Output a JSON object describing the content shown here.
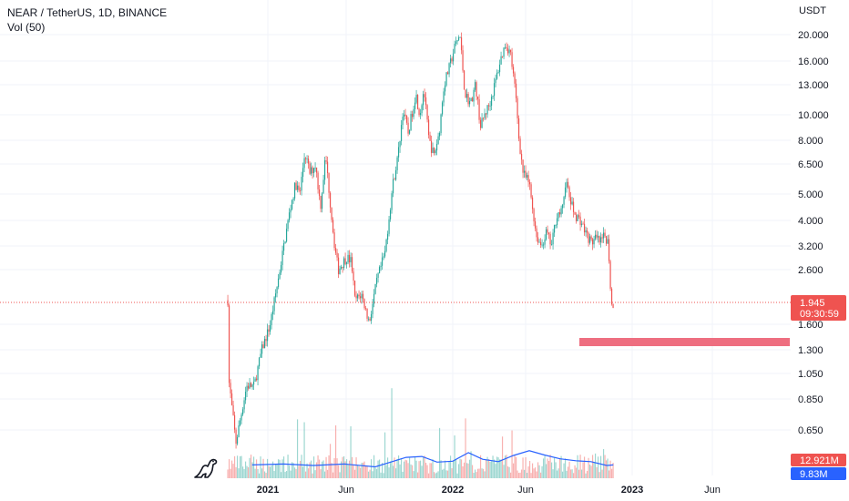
{
  "legend": {
    "symbol_line": "NEAR / TetherUS, 1D, BINANCE",
    "volume_line": "Vol (50)"
  },
  "axis": {
    "currency": "USDT"
  },
  "price_ticks": [
    "20.000",
    "16.000",
    "13.000",
    "10.000",
    "8.000",
    "6.500",
    "5.000",
    "4.000",
    "3.200",
    "2.600",
    "1.600",
    "1.300",
    "1.050",
    "0.850",
    "0.650"
  ],
  "time_ticks": [
    "2021",
    "Jun",
    "2022",
    "Jun",
    "2023",
    "Jun"
  ],
  "last_price": {
    "value": "1.945",
    "countdown": "09:30:59"
  },
  "volume_labels": {
    "volume": "12.921M",
    "volume_ma": "9.83M"
  },
  "colors": {
    "up": "#26a69a",
    "down": "#ef5350",
    "ma": "#2962ff",
    "zone": "#ee6e80",
    "grid": "#f0f3fa"
  },
  "chart_data": {
    "type": "candlestick",
    "title": "NEAR / TetherUS, 1D, BINANCE",
    "y_scale": "log",
    "ylim": [
      0.55,
      22
    ],
    "last_price": 1.945,
    "support_zone": {
      "from": "2022-09-20",
      "to": "2023-08-31",
      "low": 1.4,
      "high": 1.48
    },
    "price_path": [
      [
        "2020-10-14",
        2.0
      ],
      [
        "2020-10-16",
        1.0
      ],
      [
        "2020-10-30",
        0.58
      ],
      [
        "2020-11-20",
        0.95
      ],
      [
        "2020-12-05",
        0.95
      ],
      [
        "2020-12-20",
        1.3
      ],
      [
        "2021-01-05",
        1.6
      ],
      [
        "2021-01-20",
        2.3
      ],
      [
        "2021-02-05",
        3.5
      ],
      [
        "2021-02-15",
        4.5
      ],
      [
        "2021-02-25",
        5.5
      ],
      [
        "2021-03-05",
        5.0
      ],
      [
        "2021-03-15",
        7.2
      ],
      [
        "2021-03-25",
        6.0
      ],
      [
        "2021-04-05",
        6.5
      ],
      [
        "2021-04-15",
        4.5
      ],
      [
        "2021-04-25",
        7.0
      ],
      [
        "2021-05-05",
        4.5
      ],
      [
        "2021-05-12",
        3.3
      ],
      [
        "2021-05-20",
        2.6
      ],
      [
        "2021-06-05",
        2.9
      ],
      [
        "2021-06-15",
        2.8
      ],
      [
        "2021-06-22",
        2.0
      ],
      [
        "2021-07-05",
        2.1
      ],
      [
        "2021-07-20",
        1.65
      ],
      [
        "2021-08-05",
        2.4
      ],
      [
        "2021-08-20",
        3.0
      ],
      [
        "2021-09-05",
        5.5
      ],
      [
        "2021-09-15",
        7.0
      ],
      [
        "2021-09-25",
        10.5
      ],
      [
        "2021-10-05",
        8.5
      ],
      [
        "2021-10-20",
        12.0
      ],
      [
        "2021-10-28",
        10.0
      ],
      [
        "2021-11-05",
        12.5
      ],
      [
        "2021-11-15",
        8.0
      ],
      [
        "2021-11-25",
        7.0
      ],
      [
        "2021-12-05",
        8.5
      ],
      [
        "2021-12-15",
        13.0
      ],
      [
        "2021-12-25",
        15.0
      ],
      [
        "2022-01-05",
        18.0
      ],
      [
        "2022-01-15",
        20.0
      ],
      [
        "2022-01-25",
        12.0
      ],
      [
        "2022-02-05",
        11.0
      ],
      [
        "2022-02-15",
        13.0
      ],
      [
        "2022-02-25",
        9.0
      ],
      [
        "2022-03-05",
        10.0
      ],
      [
        "2022-03-15",
        11.0
      ],
      [
        "2022-03-25",
        13.0
      ],
      [
        "2022-04-05",
        16.0
      ],
      [
        "2022-04-15",
        18.5
      ],
      [
        "2022-04-25",
        17.0
      ],
      [
        "2022-05-05",
        12.0
      ],
      [
        "2022-05-12",
        8.0
      ],
      [
        "2022-05-20",
        6.0
      ],
      [
        "2022-06-01",
        5.5
      ],
      [
        "2022-06-15",
        3.5
      ],
      [
        "2022-06-25",
        3.2
      ],
      [
        "2022-07-05",
        3.6
      ],
      [
        "2022-07-15",
        3.2
      ],
      [
        "2022-07-25",
        4.2
      ],
      [
        "2022-08-05",
        4.3
      ],
      [
        "2022-08-12",
        5.7
      ],
      [
        "2022-08-20",
        4.8
      ],
      [
        "2022-08-30",
        4.2
      ],
      [
        "2022-09-10",
        4.0
      ],
      [
        "2022-09-20",
        3.6
      ],
      [
        "2022-10-01",
        3.3
      ],
      [
        "2022-10-10",
        3.4
      ],
      [
        "2022-10-20",
        3.3
      ],
      [
        "2022-10-28",
        3.5
      ],
      [
        "2022-11-04",
        3.3
      ],
      [
        "2022-11-08",
        2.3
      ],
      [
        "2022-11-10",
        1.9
      ],
      [
        "2022-11-14",
        1.945
      ]
    ],
    "volume_ma_path": [
      [
        "2020-12-01",
        2.8
      ],
      [
        "2021-02-01",
        3.0
      ],
      [
        "2021-04-01",
        2.7
      ],
      [
        "2021-06-01",
        3.0
      ],
      [
        "2021-08-01",
        2.4
      ],
      [
        "2021-10-01",
        4.4
      ],
      [
        "2021-11-01",
        4.6
      ],
      [
        "2021-12-01",
        3.4
      ],
      [
        "2022-01-01",
        3.6
      ],
      [
        "2022-02-01",
        5.4
      ],
      [
        "2022-03-01",
        4.0
      ],
      [
        "2022-04-01",
        3.5
      ],
      [
        "2022-05-01",
        4.8
      ],
      [
        "2022-06-01",
        5.8
      ],
      [
        "2022-07-01",
        4.9
      ],
      [
        "2022-08-01",
        4.1
      ],
      [
        "2022-09-01",
        3.7
      ],
      [
        "2022-10-01",
        3.5
      ],
      [
        "2022-11-01",
        2.7
      ],
      [
        "2022-11-14",
        2.8
      ]
    ]
  }
}
